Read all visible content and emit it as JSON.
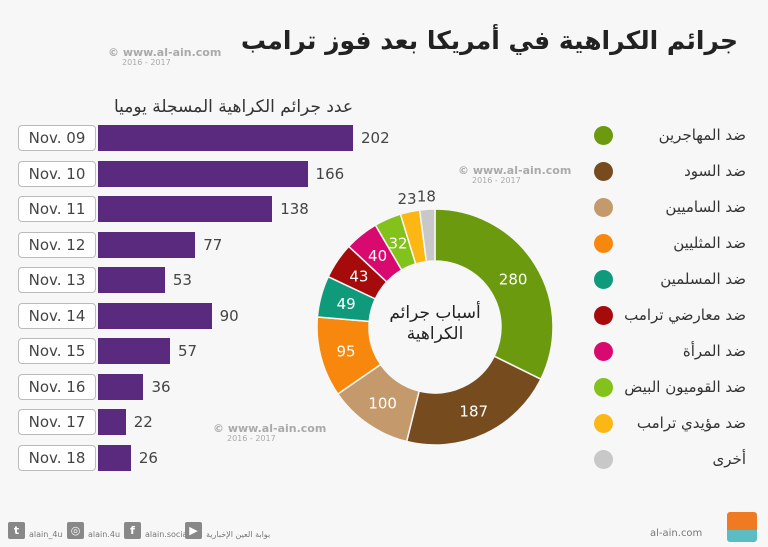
{
  "title": "جرائم الكراهية في أمريكا بعد فوز ترامب",
  "watermark": {
    "site": "www.al-ain.com",
    "years": "2016 - 2017"
  },
  "chart_data": [
    {
      "type": "bar",
      "orientation": "horizontal",
      "title": "عدد جرائم الكراهية المسجلة يوميا",
      "categories": [
        "Nov. 09",
        "Nov. 10",
        "Nov. 11",
        "Nov. 12",
        "Nov. 13",
        "Nov. 14",
        "Nov. 15",
        "Nov. 16",
        "Nov. 17",
        "Nov. 18"
      ],
      "values": [
        202,
        166,
        138,
        77,
        53,
        90,
        57,
        36,
        22,
        26
      ],
      "color": "#5a2a7e"
    },
    {
      "type": "pie",
      "variant": "donut",
      "title": "أسباب جرائم الكراهية",
      "legend": "right",
      "categories": [
        "ضد المهاجرين",
        "ضد السود",
        "ضد الساميين",
        "ضد المثليين",
        "ضد المسلمين",
        "ضد معارضي ترامب",
        "ضد المرأة",
        "ضد القوميون البيض",
        "ضد مؤيدي ترامب",
        "أخرى"
      ],
      "values": [
        280,
        187,
        100,
        95,
        49,
        43,
        40,
        32,
        23,
        18
      ],
      "colors": [
        "#6b9a0f",
        "#764c1f",
        "#c49a6c",
        "#f7880d",
        "#0f9a7c",
        "#a50b0b",
        "#d8096f",
        "#83c11b",
        "#fdb714",
        "#c8c8c8"
      ]
    }
  ],
  "footer": {
    "twitter": "alain_4u",
    "instagram": "alain.4u",
    "facebook": "alain.social",
    "youtube": "بوابة العين الإخبارية",
    "site": "al-ain.com"
  }
}
